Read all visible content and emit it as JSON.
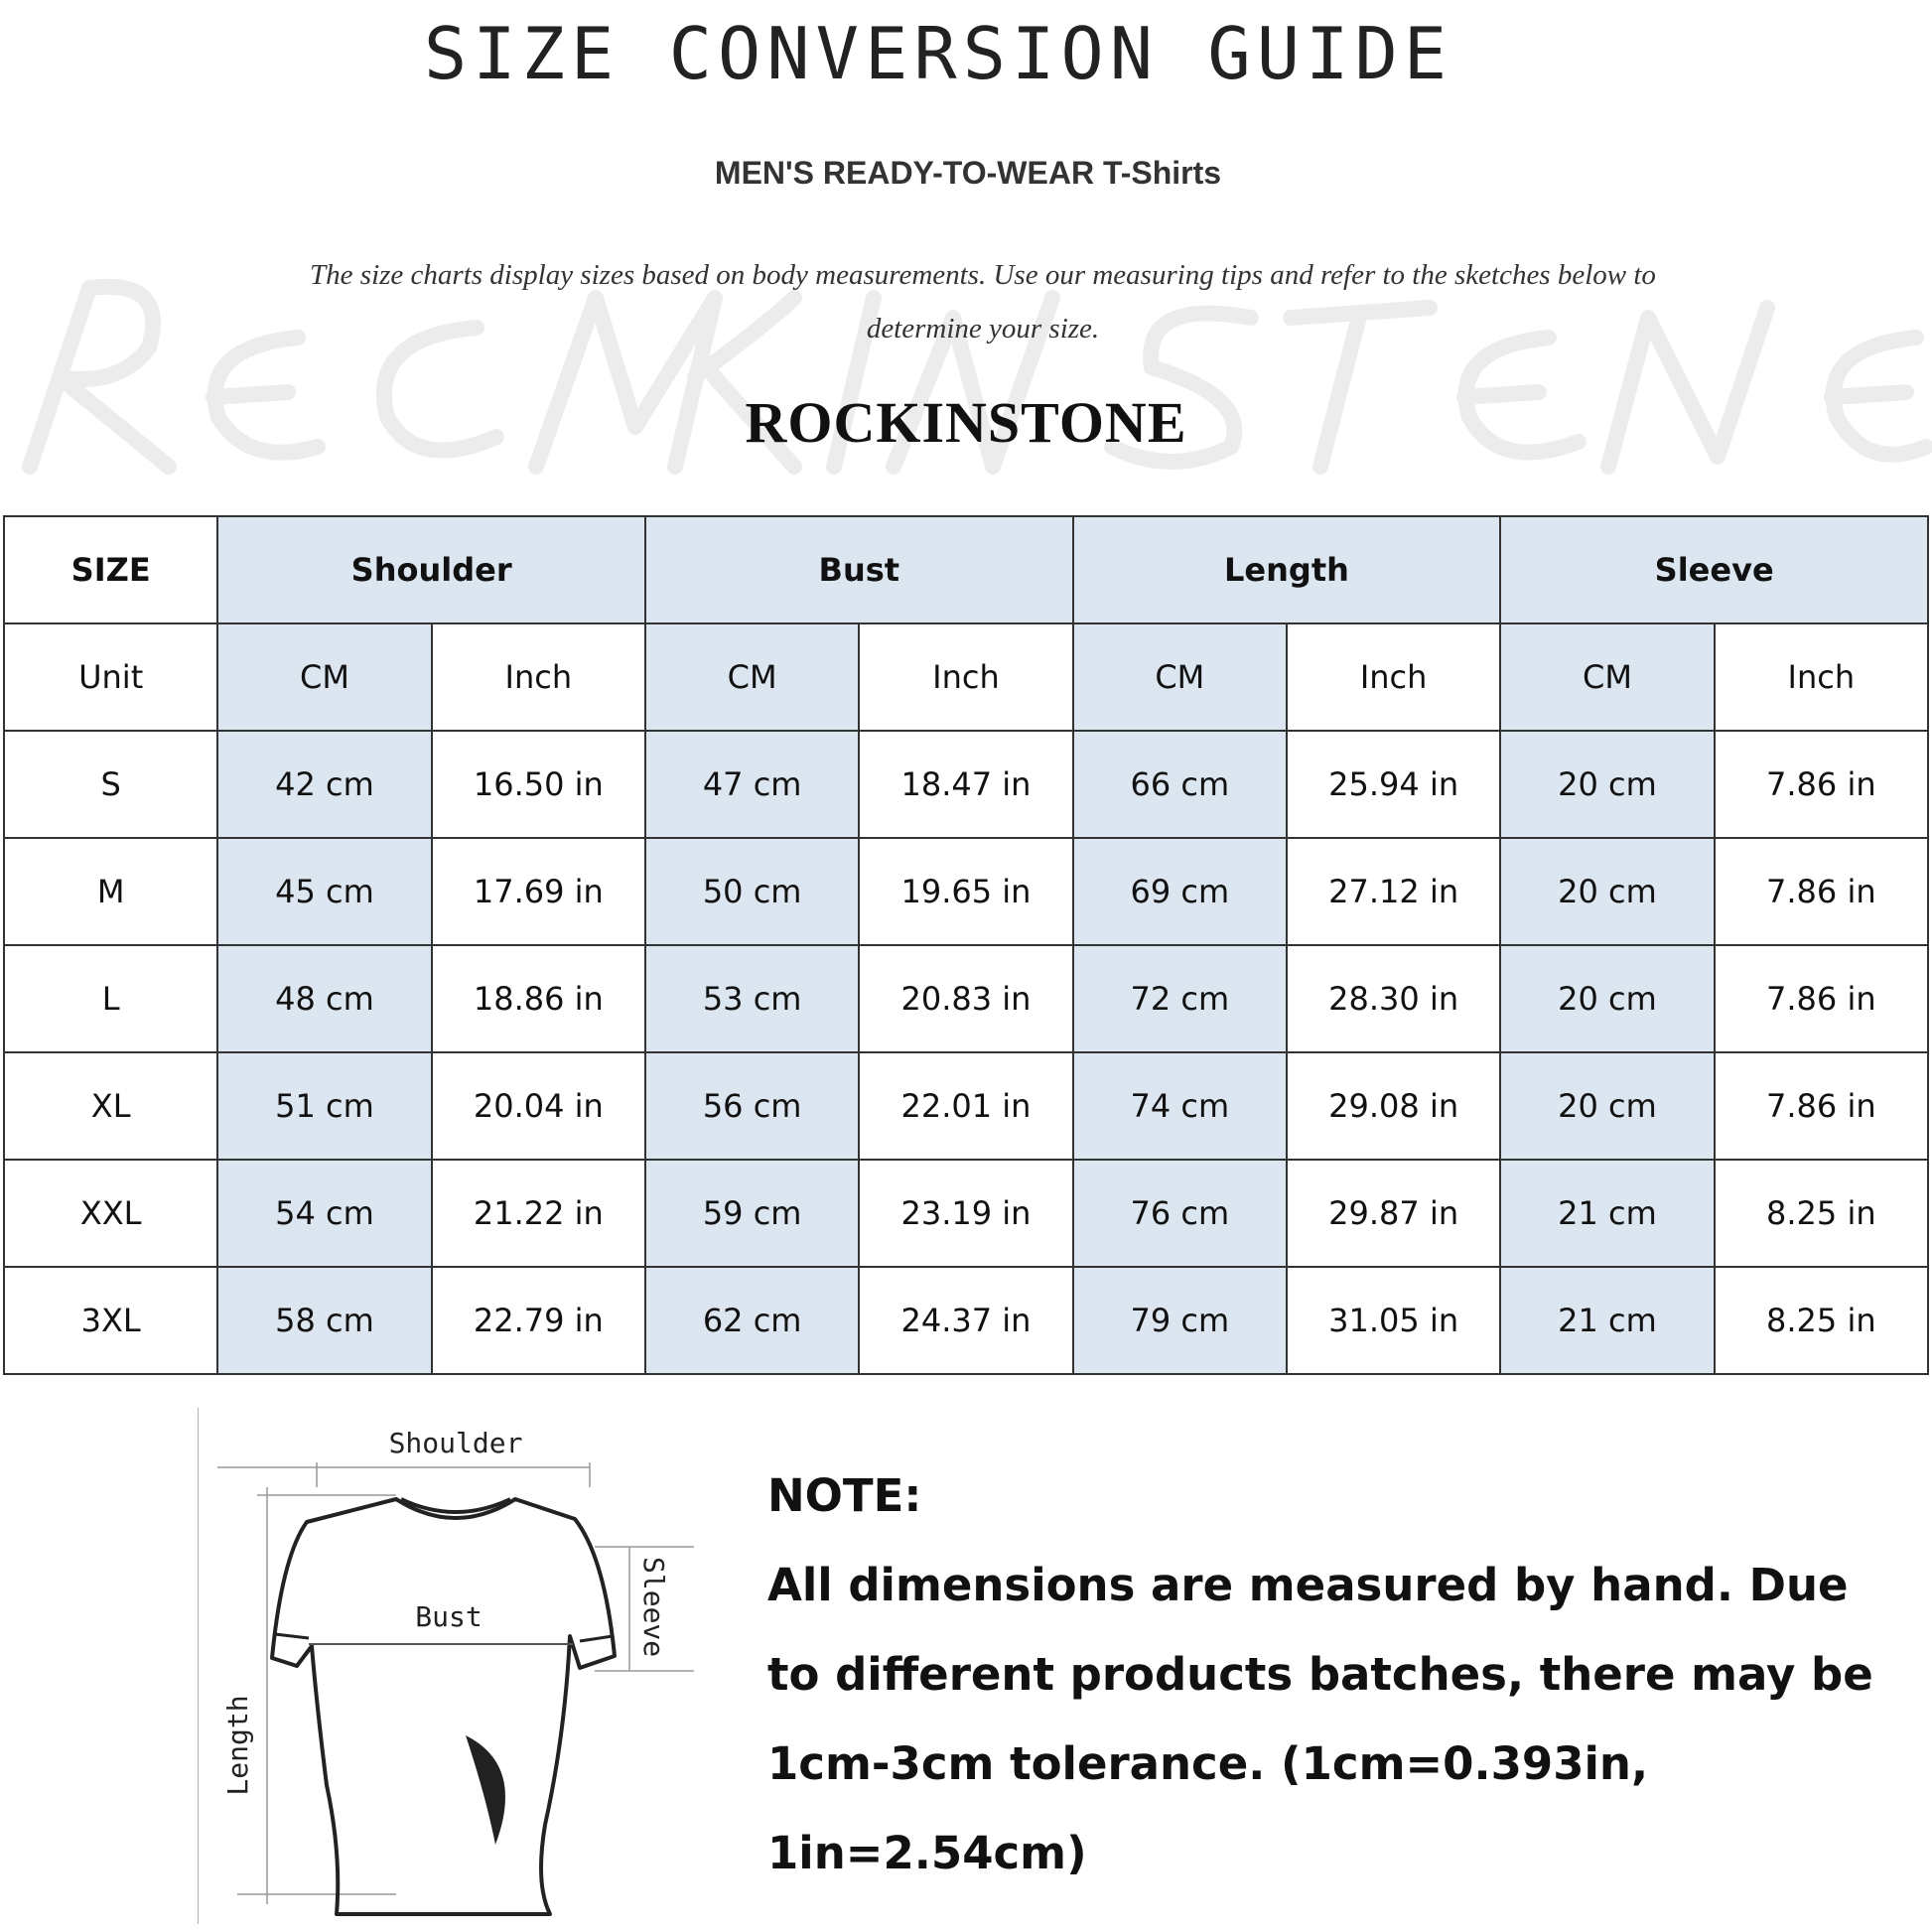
{
  "header": {
    "title": "SIZE CONVERSION GUIDE",
    "subtitle": "MEN'S READY-TO-WEAR T-Shirts",
    "description": "The size charts display sizes based on body measurements. Use our measuring tips and refer to the sketches below to determine your size.",
    "watermark": "ROCKINSTONE",
    "brand": "ROCKINSTONE"
  },
  "table": {
    "header_row": [
      "SIZE",
      "Shoulder",
      "Bust",
      "Length",
      "Sleeve"
    ],
    "unit_row": [
      "Unit",
      "CM",
      "Inch",
      "CM",
      "Inch",
      "CM",
      "Inch",
      "CM",
      "Inch"
    ],
    "rows": [
      [
        "S",
        "42 cm",
        "16.50 in",
        "47 cm",
        "18.47  in",
        "66 cm",
        "25.94  in",
        "20 cm",
        "7.86  in"
      ],
      [
        "M",
        "45 cm",
        "17.69  in",
        "50 cm",
        "19.65  in",
        "69 cm",
        "27.12  in",
        "20 cm",
        "7.86  in"
      ],
      [
        "L",
        "48 cm",
        "18.86  in",
        "53 cm",
        "20.83  in",
        "72 cm",
        "28.30  in",
        "20 cm",
        "7.86  in"
      ],
      [
        "XL",
        "51 cm",
        "20.04  in",
        "56 cm",
        "22.01  in",
        "74 cm",
        "29.08  in",
        "20 cm",
        "7.86  in"
      ],
      [
        "XXL",
        "54 cm",
        "21.22  in",
        "59 cm",
        "23.19  in",
        "76 cm",
        "29.87  in",
        "21 cm",
        "8.25  in"
      ],
      [
        "3XL",
        "58 cm",
        "22.79  in",
        "62 cm",
        "24.37  in",
        "79 cm",
        "31.05  in",
        "21 cm",
        "8.25  in"
      ]
    ],
    "shade_color": "#dce6f0"
  },
  "diagram": {
    "shoulder": "Shoulder",
    "bust": "Bust",
    "sleeve": "Sleeve",
    "length": "Length"
  },
  "note": {
    "heading": "NOTE:",
    "text": "All dimensions are measured by hand. Due to different products batches, there may be 1cm-3cm tolerance. (1cm=0.393in, 1in=2.54cm)"
  }
}
